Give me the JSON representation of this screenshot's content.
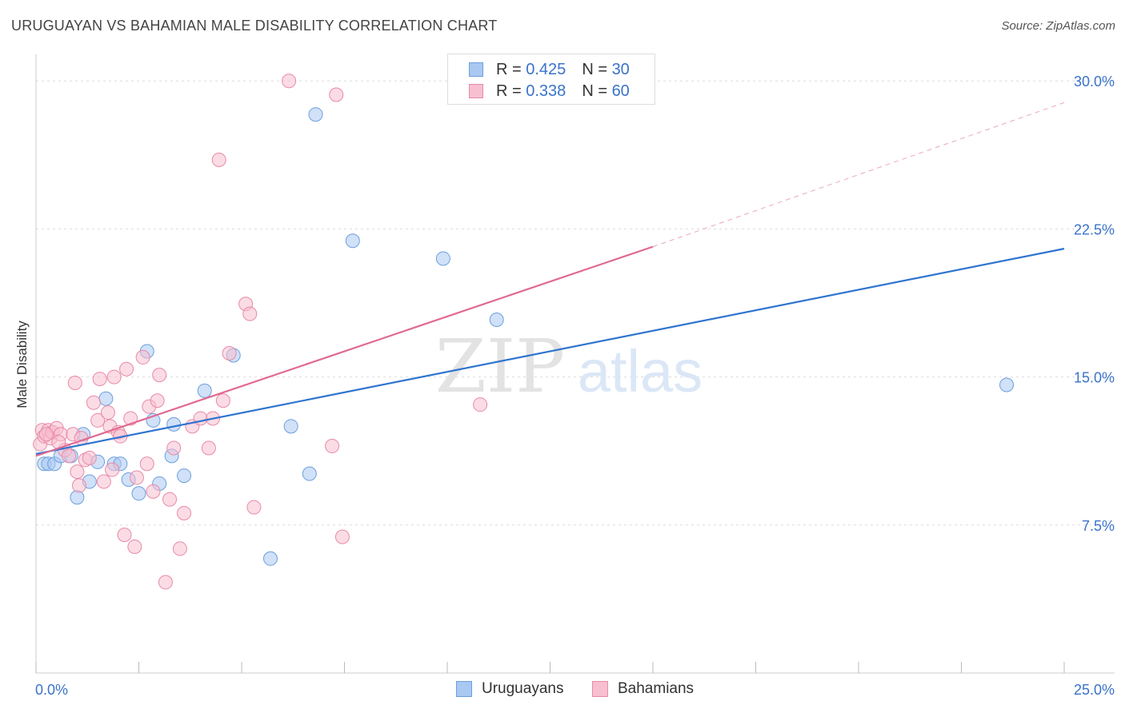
{
  "title": "URUGUAYAN VS BAHAMIAN MALE DISABILITY CORRELATION CHART",
  "source": "Source: ZipAtlas.com",
  "watermark": {
    "zip": "ZIP",
    "atlas": "atlas"
  },
  "legend_top": [
    {
      "r_label": "R =",
      "r_value": "0.425",
      "n_label": "N =",
      "n_value": "30",
      "color": "#a9c8f2",
      "border": "#6d9fdc"
    },
    {
      "r_label": "R =",
      "r_value": "0.338",
      "n_label": "N =",
      "n_value": "60",
      "color": "#f7bfd0",
      "border": "#e88aa8"
    }
  ],
  "legend_bottom": [
    {
      "label": "Uruguayans",
      "color": "#a9c8f2",
      "border": "#6d9fdc"
    },
    {
      "label": "Bahamians",
      "color": "#f7bfd0",
      "border": "#e88aa8"
    }
  ],
  "chart_data": {
    "type": "scatter",
    "title": "URUGUAYAN VS BAHAMIAN MALE DISABILITY CORRELATION CHART",
    "xlabel": "",
    "ylabel": "Male Disability",
    "xlim": [
      0,
      25
    ],
    "ylim": [
      0,
      30.9
    ],
    "x_tick_labels": [
      {
        "value": 0,
        "label": "0.0%"
      },
      {
        "value": 25,
        "label": "25.0%"
      }
    ],
    "y_tick_labels": [
      {
        "value": 7.5,
        "label": "7.5%"
      },
      {
        "value": 15,
        "label": "15.0%"
      },
      {
        "value": 22.5,
        "label": "22.5%"
      },
      {
        "value": 30,
        "label": "30.0%"
      }
    ],
    "series": [
      {
        "name": "Uruguayans",
        "color": "#a9c8f2",
        "stroke": "#6d9fdc",
        "line_color": "#2f74d0",
        "trend": {
          "x0": 0,
          "y0": 11.1,
          "x1": 25,
          "y1": 21.5
        },
        "points": [
          [
            0.2,
            10.6
          ],
          [
            0.3,
            10.6
          ],
          [
            0.45,
            10.6
          ],
          [
            0.6,
            11.0
          ],
          [
            0.85,
            11.0
          ],
          [
            1.0,
            8.9
          ],
          [
            1.15,
            12.1
          ],
          [
            1.3,
            9.7
          ],
          [
            1.5,
            10.7
          ],
          [
            1.7,
            13.9
          ],
          [
            1.9,
            10.6
          ],
          [
            2.05,
            10.6
          ],
          [
            2.25,
            9.8
          ],
          [
            2.5,
            9.1
          ],
          [
            2.7,
            16.3
          ],
          [
            2.85,
            12.8
          ],
          [
            3.0,
            9.6
          ],
          [
            3.3,
            11.0
          ],
          [
            3.35,
            12.6
          ],
          [
            3.6,
            10.0
          ],
          [
            4.1,
            14.3
          ],
          [
            4.8,
            16.1
          ],
          [
            5.7,
            5.8
          ],
          [
            6.2,
            12.5
          ],
          [
            6.65,
            10.1
          ],
          [
            6.8,
            28.3
          ],
          [
            7.7,
            21.9
          ],
          [
            9.9,
            21.0
          ],
          [
            11.2,
            17.9
          ],
          [
            23.6,
            14.6
          ]
        ]
      },
      {
        "name": "Bahamians",
        "color": "#f7bfd0",
        "stroke": "#e88aa8",
        "line_color": "#e06a92",
        "trend": {
          "x0": 0,
          "y0": 11.0,
          "x1": 15.0,
          "y1": 21.6
        },
        "trend_dashed_to": {
          "x": 25,
          "y": 28.9
        },
        "points": [
          [
            0.1,
            11.6
          ],
          [
            0.15,
            12.3
          ],
          [
            0.2,
            12.0
          ],
          [
            0.3,
            12.3
          ],
          [
            0.35,
            11.9
          ],
          [
            0.4,
            12.2
          ],
          [
            0.5,
            12.4
          ],
          [
            0.6,
            12.1
          ],
          [
            0.7,
            11.3
          ],
          [
            0.8,
            11.0
          ],
          [
            0.9,
            12.1
          ],
          [
            0.95,
            14.7
          ],
          [
            1.0,
            10.2
          ],
          [
            1.05,
            9.5
          ],
          [
            1.1,
            11.9
          ],
          [
            1.2,
            10.8
          ],
          [
            1.3,
            10.9
          ],
          [
            1.4,
            13.7
          ],
          [
            1.5,
            12.8
          ],
          [
            1.55,
            14.9
          ],
          [
            1.65,
            9.7
          ],
          [
            1.75,
            13.2
          ],
          [
            1.8,
            12.5
          ],
          [
            1.85,
            10.3
          ],
          [
            1.9,
            15.0
          ],
          [
            2.0,
            12.2
          ],
          [
            2.05,
            12.0
          ],
          [
            2.15,
            7.0
          ],
          [
            2.2,
            15.4
          ],
          [
            2.3,
            12.9
          ],
          [
            2.4,
            6.4
          ],
          [
            2.45,
            9.9
          ],
          [
            2.6,
            16.0
          ],
          [
            2.7,
            10.6
          ],
          [
            2.75,
            13.5
          ],
          [
            2.85,
            9.2
          ],
          [
            2.95,
            13.8
          ],
          [
            3.0,
            15.1
          ],
          [
            3.15,
            4.6
          ],
          [
            3.25,
            8.8
          ],
          [
            3.35,
            11.4
          ],
          [
            3.5,
            6.3
          ],
          [
            3.6,
            8.1
          ],
          [
            3.8,
            12.5
          ],
          [
            4.0,
            12.9
          ],
          [
            4.2,
            11.4
          ],
          [
            4.3,
            12.9
          ],
          [
            4.45,
            26.0
          ],
          [
            4.55,
            13.8
          ],
          [
            4.7,
            16.2
          ],
          [
            5.1,
            18.7
          ],
          [
            5.2,
            18.2
          ],
          [
            5.3,
            8.4
          ],
          [
            6.15,
            30.0
          ],
          [
            7.2,
            11.5
          ],
          [
            7.3,
            29.3
          ],
          [
            7.45,
            6.9
          ],
          [
            10.8,
            13.6
          ],
          [
            0.25,
            12.1
          ],
          [
            0.55,
            11.7
          ]
        ]
      }
    ]
  }
}
